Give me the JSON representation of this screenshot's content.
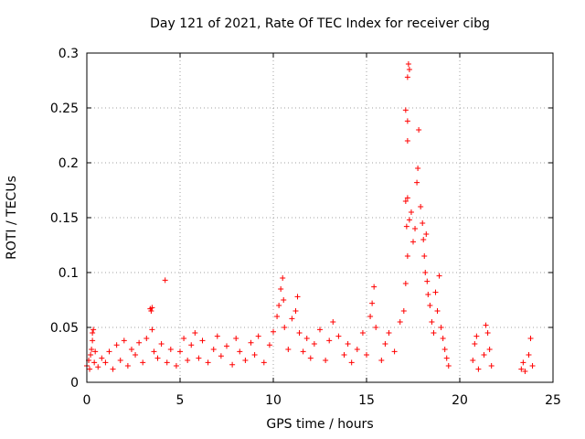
{
  "chart_data": {
    "type": "scatter",
    "title": "Day 121 of 2021, Rate Of TEC Index for receiver cibg",
    "xlabel": "GPS time / hours",
    "ylabel": "ROTI / TECUs",
    "xlim": [
      0,
      25
    ],
    "ylim": [
      0,
      0.3
    ],
    "xticks": [
      0,
      5,
      10,
      15,
      20,
      25
    ],
    "xtick_labels": [
      "0",
      "5",
      "10",
      "15",
      "20",
      "25"
    ],
    "yticks": [
      0,
      0.05,
      0.1,
      0.15,
      0.2,
      0.25,
      0.3
    ],
    "ytick_labels": [
      "0",
      "0.05",
      "0.1",
      "0.15",
      "0.2",
      "0.25",
      "0.3"
    ],
    "grid": true,
    "marker": "+",
    "color": "#ff0000",
    "series": [
      {
        "name": "",
        "points": [
          [
            0.0,
            0.015
          ],
          [
            0.1,
            0.02
          ],
          [
            0.15,
            0.012
          ],
          [
            0.2,
            0.025
          ],
          [
            0.25,
            0.03
          ],
          [
            0.3,
            0.038
          ],
          [
            0.3,
            0.045
          ],
          [
            0.35,
            0.048
          ],
          [
            0.4,
            0.018
          ],
          [
            0.45,
            0.028
          ],
          [
            0.6,
            0.014
          ],
          [
            0.8,
            0.022
          ],
          [
            1.0,
            0.018
          ],
          [
            1.2,
            0.028
          ],
          [
            1.4,
            0.012
          ],
          [
            1.6,
            0.034
          ],
          [
            1.8,
            0.02
          ],
          [
            2.0,
            0.038
          ],
          [
            2.2,
            0.015
          ],
          [
            2.4,
            0.03
          ],
          [
            2.6,
            0.025
          ],
          [
            2.8,
            0.036
          ],
          [
            3.0,
            0.018
          ],
          [
            3.2,
            0.04
          ],
          [
            3.4,
            0.067
          ],
          [
            3.45,
            0.065
          ],
          [
            3.5,
            0.068
          ],
          [
            3.5,
            0.048
          ],
          [
            3.6,
            0.028
          ],
          [
            3.8,
            0.022
          ],
          [
            4.0,
            0.035
          ],
          [
            4.2,
            0.093
          ],
          [
            4.3,
            0.018
          ],
          [
            4.5,
            0.03
          ],
          [
            4.8,
            0.015
          ],
          [
            5.0,
            0.028
          ],
          [
            5.2,
            0.04
          ],
          [
            5.4,
            0.02
          ],
          [
            5.6,
            0.034
          ],
          [
            5.8,
            0.045
          ],
          [
            6.0,
            0.022
          ],
          [
            6.2,
            0.038
          ],
          [
            6.5,
            0.018
          ],
          [
            6.8,
            0.03
          ],
          [
            7.0,
            0.042
          ],
          [
            7.2,
            0.024
          ],
          [
            7.5,
            0.033
          ],
          [
            7.8,
            0.016
          ],
          [
            8.0,
            0.04
          ],
          [
            8.2,
            0.028
          ],
          [
            8.5,
            0.02
          ],
          [
            8.8,
            0.036
          ],
          [
            9.0,
            0.025
          ],
          [
            9.2,
            0.042
          ],
          [
            9.5,
            0.018
          ],
          [
            9.8,
            0.034
          ],
          [
            10.0,
            0.046
          ],
          [
            10.2,
            0.06
          ],
          [
            10.3,
            0.07
          ],
          [
            10.4,
            0.085
          ],
          [
            10.5,
            0.095
          ],
          [
            10.55,
            0.075
          ],
          [
            10.6,
            0.05
          ],
          [
            10.8,
            0.03
          ],
          [
            11.0,
            0.058
          ],
          [
            11.2,
            0.065
          ],
          [
            11.3,
            0.078
          ],
          [
            11.4,
            0.045
          ],
          [
            11.6,
            0.028
          ],
          [
            11.8,
            0.04
          ],
          [
            12.0,
            0.022
          ],
          [
            12.2,
            0.035
          ],
          [
            12.5,
            0.048
          ],
          [
            12.8,
            0.02
          ],
          [
            13.0,
            0.038
          ],
          [
            13.2,
            0.055
          ],
          [
            13.5,
            0.042
          ],
          [
            13.8,
            0.025
          ],
          [
            14.0,
            0.035
          ],
          [
            14.2,
            0.018
          ],
          [
            14.5,
            0.03
          ],
          [
            14.8,
            0.045
          ],
          [
            15.0,
            0.025
          ],
          [
            15.2,
            0.06
          ],
          [
            15.3,
            0.072
          ],
          [
            15.4,
            0.087
          ],
          [
            15.5,
            0.05
          ],
          [
            15.8,
            0.02
          ],
          [
            16.0,
            0.035
          ],
          [
            16.2,
            0.045
          ],
          [
            16.5,
            0.028
          ],
          [
            16.8,
            0.055
          ],
          [
            17.0,
            0.065
          ],
          [
            17.1,
            0.09
          ],
          [
            17.2,
            0.115
          ],
          [
            17.25,
            0.29
          ],
          [
            17.3,
            0.285
          ],
          [
            17.2,
            0.278
          ],
          [
            17.1,
            0.248
          ],
          [
            17.2,
            0.238
          ],
          [
            17.2,
            0.22
          ],
          [
            17.1,
            0.165
          ],
          [
            17.2,
            0.168
          ],
          [
            17.15,
            0.142
          ],
          [
            17.3,
            0.148
          ],
          [
            17.4,
            0.155
          ],
          [
            17.5,
            0.128
          ],
          [
            17.6,
            0.14
          ],
          [
            17.7,
            0.182
          ],
          [
            17.75,
            0.195
          ],
          [
            17.8,
            0.23
          ],
          [
            17.9,
            0.16
          ],
          [
            18.0,
            0.145
          ],
          [
            18.05,
            0.13
          ],
          [
            18.1,
            0.115
          ],
          [
            18.15,
            0.1
          ],
          [
            18.2,
            0.135
          ],
          [
            18.25,
            0.092
          ],
          [
            18.3,
            0.08
          ],
          [
            18.4,
            0.07
          ],
          [
            18.5,
            0.055
          ],
          [
            18.6,
            0.045
          ],
          [
            18.7,
            0.082
          ],
          [
            18.8,
            0.065
          ],
          [
            18.9,
            0.097
          ],
          [
            19.0,
            0.05
          ],
          [
            19.1,
            0.04
          ],
          [
            19.2,
            0.03
          ],
          [
            19.3,
            0.022
          ],
          [
            19.4,
            0.015
          ],
          [
            20.7,
            0.02
          ],
          [
            20.8,
            0.035
          ],
          [
            20.9,
            0.042
          ],
          [
            21.0,
            0.012
          ],
          [
            21.3,
            0.025
          ],
          [
            21.4,
            0.052
          ],
          [
            21.5,
            0.045
          ],
          [
            21.6,
            0.03
          ],
          [
            21.7,
            0.015
          ],
          [
            23.3,
            0.012
          ],
          [
            23.4,
            0.018
          ],
          [
            23.5,
            0.01
          ],
          [
            23.7,
            0.025
          ],
          [
            23.8,
            0.04
          ],
          [
            23.9,
            0.015
          ]
        ]
      }
    ]
  }
}
